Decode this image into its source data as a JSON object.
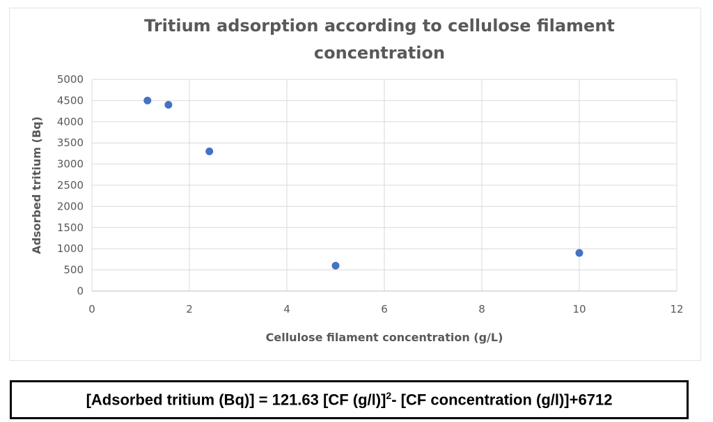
{
  "chart_data": {
    "type": "scatter",
    "title_line1": "Tritium adsorption according to cellulose filament",
    "title_line2": "concentration",
    "xlabel": "Cellulose filament concentration (g/L)",
    "ylabel": "Adsorbed tritium (Bq)",
    "xlim": [
      0,
      12
    ],
    "ylim": [
      0,
      5000
    ],
    "x_ticks": [
      0,
      2,
      4,
      6,
      8,
      10,
      12
    ],
    "y_ticks": [
      0,
      500,
      1000,
      1500,
      2000,
      2500,
      3000,
      3500,
      4000,
      4500,
      5000
    ],
    "grid": true,
    "series": [
      {
        "color": "#4472c4",
        "points": [
          {
            "x": 1.14,
            "y": 4500
          },
          {
            "x": 1.57,
            "y": 4400
          },
          {
            "x": 2.41,
            "y": 3300
          },
          {
            "x": 5.0,
            "y": 600
          },
          {
            "x": 10.0,
            "y": 900
          }
        ]
      }
    ]
  },
  "formula": {
    "part1": "[Adsorbed tritium (Bq)] = 121.63 [CF (g/l)]",
    "sup": "2",
    "part2": "- [CF concentration (g/l)]+6712"
  }
}
